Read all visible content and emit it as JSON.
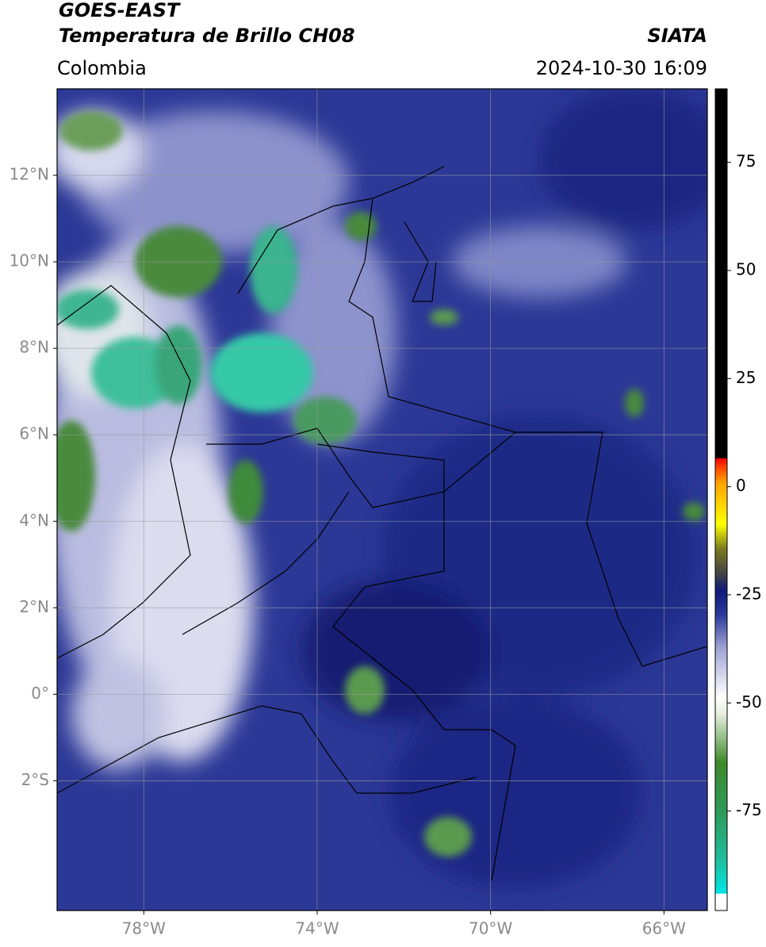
{
  "header": {
    "title": "GOES-EAST",
    "subtitle": "Temperatura de Brillo CH08",
    "source": "SIATA",
    "region": "Colombia",
    "datetime": "2024-10-30 16:09"
  },
  "map": {
    "xlim": [
      -80,
      -65
    ],
    "ylim": [
      -5,
      14
    ],
    "grid": true,
    "xticks": [
      {
        "value": -78,
        "label": "78°W"
      },
      {
        "value": -74,
        "label": "74°W"
      },
      {
        "value": -70,
        "label": "70°W"
      },
      {
        "value": -66,
        "label": "66°W"
      }
    ],
    "yticks": [
      {
        "value": 12,
        "label": "12°N"
      },
      {
        "value": 10,
        "label": "10°N"
      },
      {
        "value": 8,
        "label": "8°N"
      },
      {
        "value": 6,
        "label": "6°N"
      },
      {
        "value": 4,
        "label": "4°N"
      },
      {
        "value": 2,
        "label": "2°N"
      },
      {
        "value": 0,
        "label": "0°"
      },
      {
        "value": -2,
        "label": "2°S"
      }
    ]
  },
  "colorbar": {
    "lim": [
      -98,
      92
    ],
    "ticks": [
      75,
      50,
      25,
      0,
      -25,
      -50,
      -75
    ]
  }
}
